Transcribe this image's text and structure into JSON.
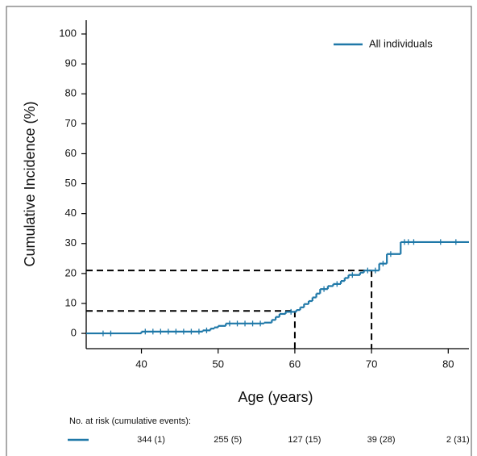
{
  "chart_data": {
    "type": "step",
    "x_label": "Age (years)",
    "y_label": "Cumulative Incidence (%)",
    "xlim": [
      32.8,
      82.7
    ],
    "ylim": [
      -5.1,
      104.6
    ],
    "xticks": [
      40,
      50,
      60,
      70,
      80
    ],
    "yticks": [
      0,
      10,
      20,
      30,
      40,
      50,
      60,
      70,
      80,
      90,
      100
    ],
    "legend_position": "upper right",
    "series": [
      {
        "name": "All individuals",
        "color": "#1f78a8",
        "x": [
          32.8,
          40,
          48,
          49,
          49.5,
          50,
          51,
          56,
          57,
          57.5,
          58,
          58.8,
          60.2,
          60.7,
          61.2,
          61.8,
          62.3,
          62.8,
          63.3,
          64.3,
          65,
          66,
          66.5,
          67,
          68.5,
          69,
          71,
          72,
          73.8
        ],
        "values": [
          0,
          0.6,
          1.0,
          1.6,
          2.0,
          2.5,
          3.3,
          3.6,
          4.5,
          5.5,
          6.5,
          7.2,
          7.8,
          8.7,
          9.8,
          10.8,
          12,
          13.3,
          14.8,
          15.8,
          16.5,
          17.5,
          18.5,
          19.5,
          20.3,
          21,
          23.3,
          26.5,
          30.5
        ],
        "censored_x": [
          35,
          36,
          40.5,
          41.5,
          42.5,
          43.5,
          44.5,
          45.5,
          46.5,
          47.5,
          48.5,
          51.5,
          52.5,
          53.5,
          54.5,
          55.5,
          59.5,
          63.8,
          65.5,
          67.5,
          69.5,
          70.5,
          71.5,
          72.5,
          74.3,
          74.8,
          75.5,
          79,
          81
        ],
        "censored_values": [
          0,
          0,
          0.6,
          0.6,
          0.6,
          0.6,
          0.6,
          0.6,
          0.6,
          0.6,
          1.0,
          3.3,
          3.3,
          3.3,
          3.3,
          3.3,
          7.2,
          14.8,
          16.5,
          19.5,
          21,
          21,
          23.3,
          26.5,
          30.5,
          30.5,
          30.5,
          30.5,
          30.5
        ]
      }
    ],
    "reference_lines": [
      {
        "x": 60,
        "y": 7.5
      },
      {
        "x": 70,
        "y": 21
      }
    ],
    "risk_table": {
      "title": "No. at risk (cumulative events):",
      "x": [
        40,
        50,
        60,
        70,
        80
      ],
      "labels": [
        "344 (1)",
        "255 (5)",
        "127 (15)",
        "39 (28)",
        "2 (31)"
      ]
    }
  }
}
